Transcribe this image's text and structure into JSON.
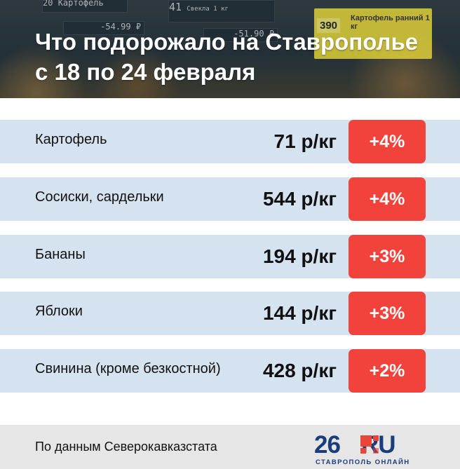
{
  "header": {
    "title_line1": "Что подорожало на Ставрополье",
    "title_line2": "с 18 по 24 февраля",
    "background_tags": [
      {
        "num": "20",
        "label": "Картофель",
        "price": "-54.99 ₽"
      },
      {
        "num": "41",
        "label": "Свекла 1 кг",
        "price": "-51.90 ₽"
      },
      {
        "num": "390",
        "label": "Картофель ранний 1 кг"
      }
    ]
  },
  "items": [
    {
      "name": "Картофель",
      "price": "71 р/кг",
      "change": "+4%"
    },
    {
      "name": "Сосиски, сардельки",
      "price": "544 р/кг",
      "change": "+4%"
    },
    {
      "name": "Бананы",
      "price": "194 р/кг",
      "change": "+3%"
    },
    {
      "name": "Яблоки",
      "price": "144 р/кг",
      "change": "+3%"
    },
    {
      "name": "Свинина (кроме безкостной)",
      "price": "428 р/кг",
      "change": "+2%"
    }
  ],
  "footer": {
    "source": "По данным Северокавказстата",
    "logo_number": "26",
    "logo_domain": "RU",
    "logo_subtitle": "СТАВРОПОЛЬ ОНЛАЙН"
  },
  "colors": {
    "row_background": "#d5e2ef",
    "badge": "#f2423c",
    "logo_blue": "#1a3d7c",
    "logo_red": "#e8453b",
    "footer_background": "#e6e6e6"
  }
}
